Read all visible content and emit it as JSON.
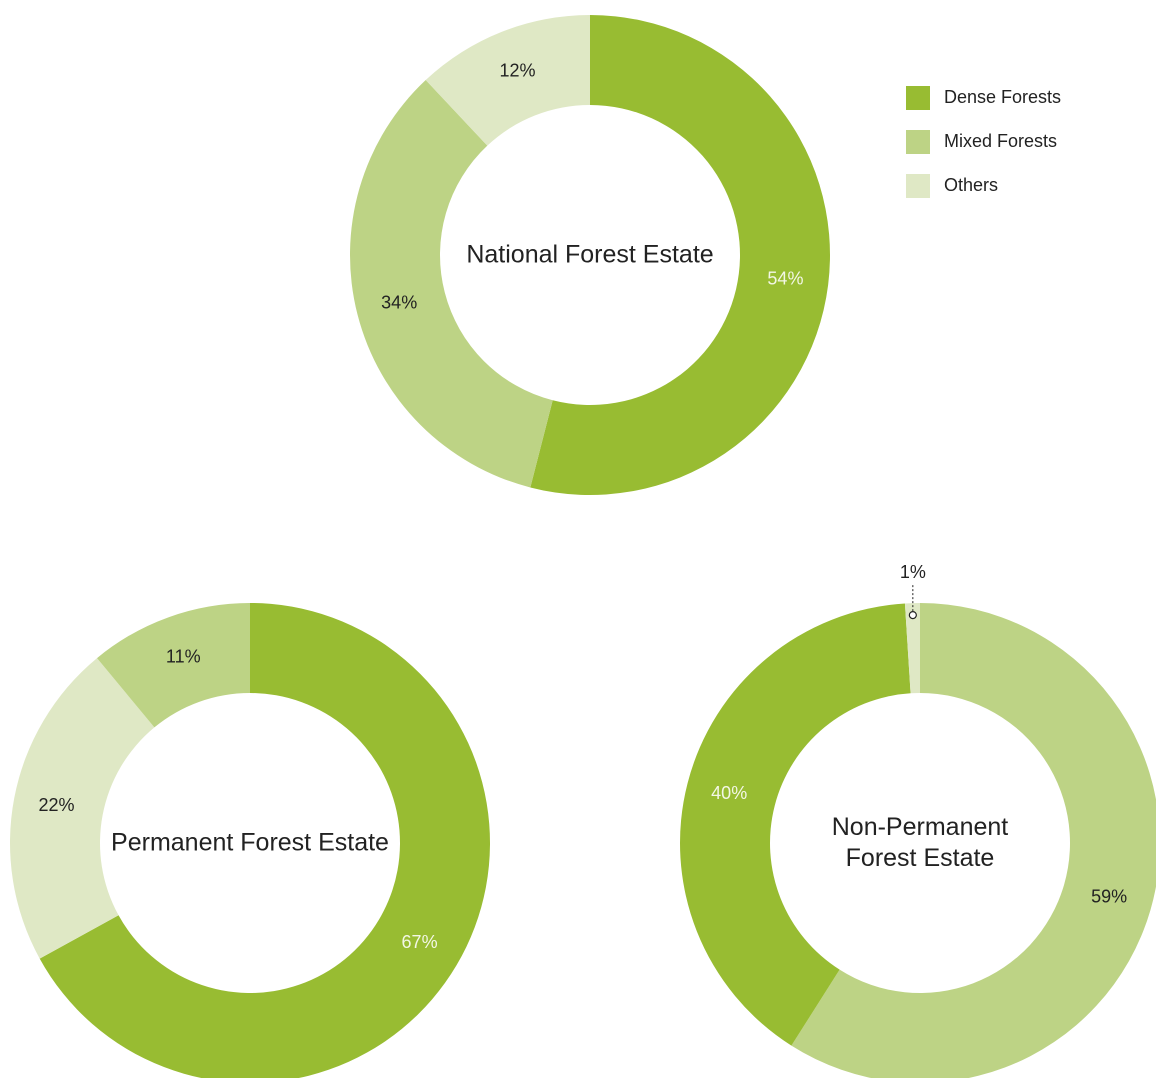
{
  "legend": {
    "items": [
      {
        "name": "Dense Forests",
        "color": "#98bc32"
      },
      {
        "name": "Mixed Forests",
        "color": "#bdd385"
      },
      {
        "name": "Others",
        "color": "#dfe8c5"
      }
    ]
  },
  "chart_data": [
    {
      "type": "donut",
      "title": "National Forest Estate",
      "categories": [
        "Dense Forests",
        "Mixed Forests",
        "Others"
      ],
      "values": [
        54,
        34,
        12
      ],
      "value_labels": [
        "54%",
        "34%",
        "12%"
      ],
      "colors": [
        "#98bc32",
        "#bdd385",
        "#dfe8c5"
      ]
    },
    {
      "type": "donut",
      "title": "Permanent Forest Estate",
      "categories": [
        "Dense Forests",
        "Others",
        "Mixed Forests"
      ],
      "values": [
        67,
        22,
        11
      ],
      "value_labels": [
        "67%",
        "22%",
        "11%"
      ],
      "colors": [
        "#98bc32",
        "#dfe8c5",
        "#bdd385"
      ]
    },
    {
      "type": "donut",
      "title": "Non-Permanent Forest Estate",
      "categories": [
        "Mixed Forests",
        "Dense Forests",
        "Others"
      ],
      "values": [
        59,
        40,
        1
      ],
      "value_labels": [
        "59%",
        "40%",
        "1%"
      ],
      "colors": [
        "#bdd385",
        "#98bc32",
        "#dfe8c5"
      ]
    }
  ]
}
